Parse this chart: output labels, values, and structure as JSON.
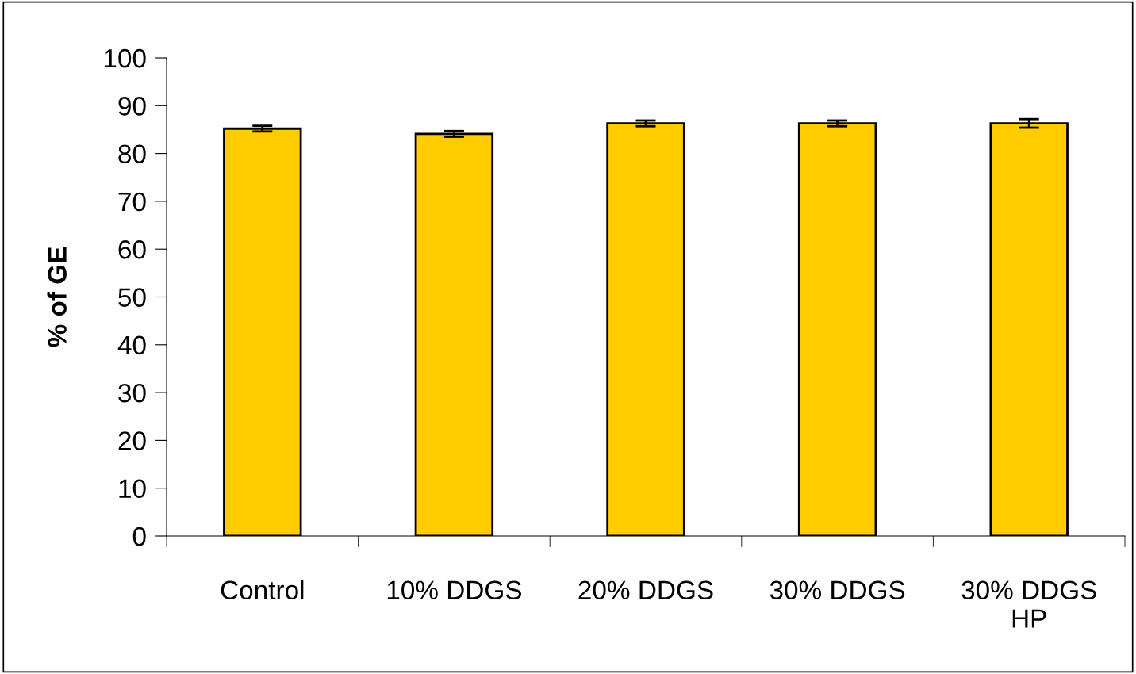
{
  "chart_data": {
    "type": "bar",
    "ylabel": "% of GE",
    "categories": [
      "Control",
      "10% DDGS",
      "20% DDGS",
      "30% DDGS",
      "30% DDGS\nHP"
    ],
    "values": [
      85.2,
      84.1,
      86.3,
      86.3,
      86.3
    ],
    "errors": [
      0.6,
      0.6,
      0.6,
      0.6,
      0.9
    ],
    "color": "#ffcc00",
    "ylim": [
      0,
      100
    ],
    "yticks": [
      0,
      10,
      20,
      30,
      40,
      50,
      60,
      70,
      80,
      90,
      100
    ],
    "grid": false,
    "legend": false
  }
}
